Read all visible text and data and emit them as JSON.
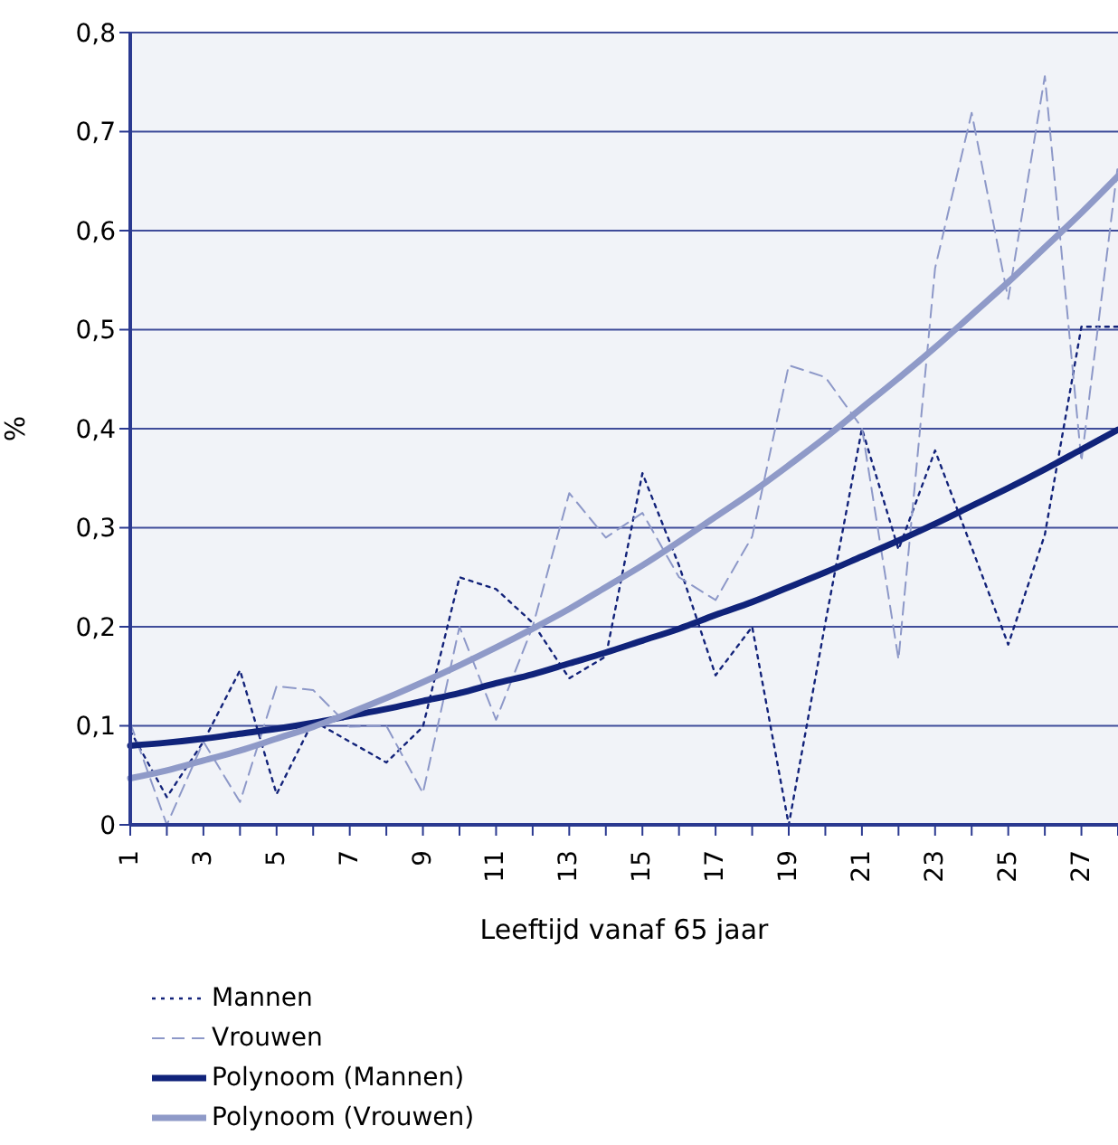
{
  "chart_data": {
    "type": "line",
    "xlabel": "Leeftijd vanaf 65 jaar",
    "ylabel": "%",
    "categories": [
      "1",
      null,
      "3",
      null,
      "5",
      null,
      "7",
      null,
      "9",
      null,
      "11",
      null,
      "13",
      null,
      "15",
      null,
      "17",
      null,
      "19",
      null,
      "21",
      null,
      "23",
      null,
      "25",
      null,
      "27",
      null
    ],
    "series": [
      {
        "name": "Mannen",
        "color": "#13237a",
        "line_style": "dotted",
        "values": [
          0.095,
          0.028,
          0.084,
          0.156,
          0.031,
          0.105,
          0.084,
          0.063,
          0.099,
          0.25,
          0.238,
          0.204,
          0.148,
          0.17,
          0.355,
          0.262,
          0.151,
          0.2,
          0.0,
          0.204,
          0.4,
          0.278,
          0.378,
          0.28,
          0.182,
          0.293,
          0.503,
          0.503
        ]
      },
      {
        "name": "Vrouwen",
        "color": "#8d98c8",
        "line_style": "dashed",
        "values": [
          0.103,
          0.0,
          0.084,
          0.023,
          0.14,
          0.136,
          0.099,
          0.1,
          0.032,
          0.2,
          0.106,
          0.2,
          0.335,
          0.29,
          0.315,
          0.25,
          0.227,
          0.291,
          0.464,
          0.452,
          0.401,
          0.167,
          0.562,
          0.719,
          0.531,
          0.756,
          0.367,
          0.667
        ]
      },
      {
        "name": "Polynoom (Mannen)",
        "color": "#10237a",
        "line_style": "solid",
        "values": [
          0.08,
          0.083,
          0.087,
          0.092,
          0.097,
          0.103,
          0.11,
          0.117,
          0.125,
          0.133,
          0.143,
          0.152,
          0.163,
          0.174,
          0.186,
          0.198,
          0.212,
          0.225,
          0.24,
          0.255,
          0.271,
          0.287,
          0.304,
          0.322,
          0.34,
          0.359,
          0.379,
          0.399
        ]
      },
      {
        "name": "Polynoom (Vrouwen)",
        "color": "#8f9ac8",
        "line_style": "solid",
        "values": [
          0.047,
          0.055,
          0.065,
          0.075,
          0.087,
          0.099,
          0.113,
          0.128,
          0.144,
          0.161,
          0.179,
          0.198,
          0.218,
          0.24,
          0.262,
          0.286,
          0.311,
          0.336,
          0.363,
          0.391,
          0.421,
          0.451,
          0.482,
          0.515,
          0.548,
          0.583,
          0.618,
          0.655
        ]
      }
    ],
    "ylim": [
      0,
      0.8
    ],
    "yticks": [
      {
        "value": 0,
        "label": "0"
      },
      {
        "value": 0.1,
        "label": "0,1"
      },
      {
        "value": 0.2,
        "label": "0,2"
      },
      {
        "value": 0.3,
        "label": "0,3"
      },
      {
        "value": 0.4,
        "label": "0,4"
      },
      {
        "value": 0.5,
        "label": "0,5"
      },
      {
        "value": 0.6,
        "label": "0,6"
      },
      {
        "value": 0.7,
        "label": "0,7"
      },
      {
        "value": 0.8,
        "label": "0,8"
      }
    ],
    "grid": "y",
    "legend": "bottom left",
    "marker": "none"
  }
}
